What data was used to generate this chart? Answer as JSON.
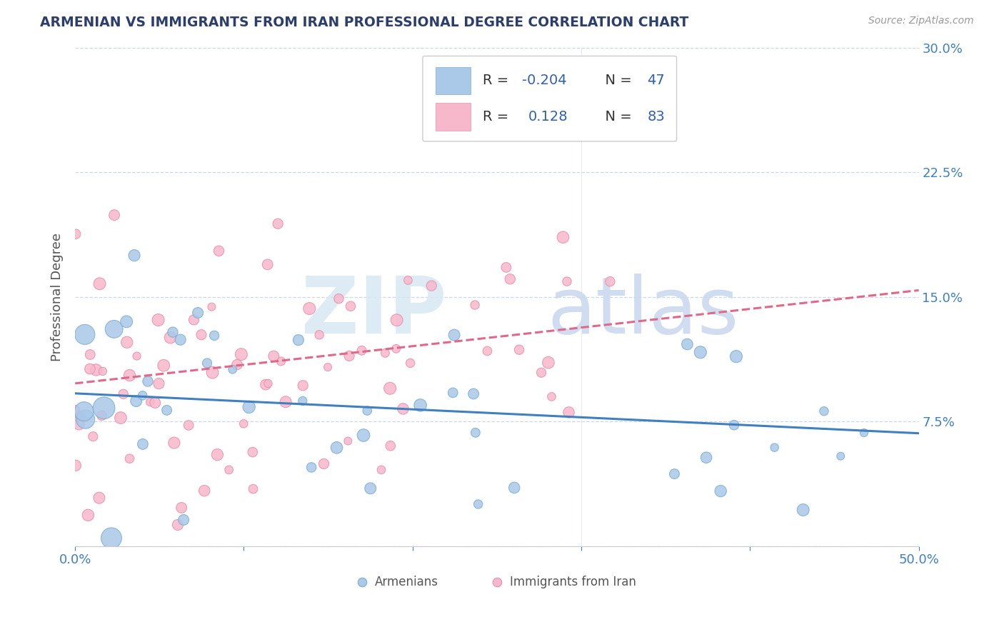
{
  "title": "ARMENIAN VS IMMIGRANTS FROM IRAN PROFESSIONAL DEGREE CORRELATION CHART",
  "source": "Source: ZipAtlas.com",
  "ylabel": "Professional Degree",
  "xmin": 0.0,
  "xmax": 0.5,
  "ymin": 0.0,
  "ymax": 0.3,
  "xticks": [
    0.0,
    0.1,
    0.2,
    0.3,
    0.4,
    0.5
  ],
  "xticklabels": [
    "0.0%",
    "",
    "",
    "",
    "",
    "50.0%"
  ],
  "yticks": [
    0.0,
    0.075,
    0.15,
    0.225,
    0.3
  ],
  "yticklabels_right": [
    "",
    "7.5%",
    "15.0%",
    "22.5%",
    "30.0%"
  ],
  "legend_entries": [
    {
      "label": "Armenians",
      "color": "#aac8e8",
      "border": "#7aafd0",
      "R": "-0.204",
      "N": "47"
    },
    {
      "label": "Immigrants from Iran",
      "color": "#f8b8cc",
      "border": "#e890aa",
      "R": "0.128",
      "N": "83"
    }
  ],
  "blue_scatter_color": "#aac8e8",
  "blue_scatter_edge": "#7aafd0",
  "pink_scatter_color": "#f8b8cc",
  "pink_scatter_edge": "#e890aa",
  "blue_line_color": "#4080c0",
  "pink_line_color": "#e06888",
  "watermark_zip_color": "#d0dff0",
  "watermark_atlas_color": "#c8d8ec",
  "background_color": "#ffffff",
  "grid_color": "#c8d4e4",
  "title_color": "#2c3e6b",
  "axis_tick_color": "#4080c0",
  "legend_R_color": "#3060b0",
  "legend_N_color": "#3060b0",
  "legend_text_color": "#333333",
  "bottom_legend_color": "#555555",
  "blue_line_intercept": 0.092,
  "blue_line_slope": -0.048,
  "pink_line_intercept": 0.098,
  "pink_line_slope": 0.112
}
